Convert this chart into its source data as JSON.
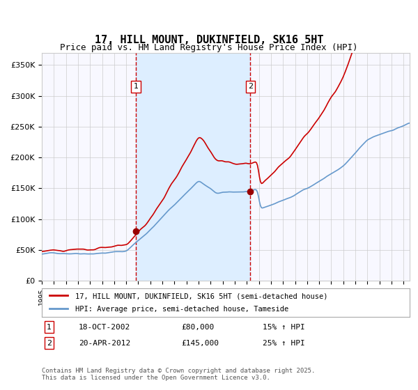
{
  "title": "17, HILL MOUNT, DUKINFIELD, SK16 5HT",
  "subtitle": "Price paid vs. HM Land Registry's House Price Index (HPI)",
  "legend_line1": "17, HILL MOUNT, DUKINFIELD, SK16 5HT (semi-detached house)",
  "legend_line2": "HPI: Average price, semi-detached house, Tameside",
  "footnote": "Contains HM Land Registry data © Crown copyright and database right 2025.\nThis data is licensed under the Open Government Licence v3.0.",
  "transaction1_date": "18-OCT-2002",
  "transaction1_price": 80000,
  "transaction1_hpi": "15% ↑ HPI",
  "transaction2_date": "20-APR-2012",
  "transaction2_price": 145000,
  "transaction2_hpi": "25% ↑ HPI",
  "red_line_color": "#cc0000",
  "blue_line_color": "#6699cc",
  "shade_color": "#ddeeff",
  "vline_color": "#cc0000",
  "grid_color": "#cccccc",
  "background_color": "#ffffff",
  "plot_bg_color": "#f8f8ff",
  "marker_color": "#990000",
  "ylim": [
    0,
    370000
  ],
  "yticks": [
    0,
    50000,
    100000,
    150000,
    200000,
    250000,
    300000,
    350000
  ],
  "ytick_labels": [
    "£0",
    "£50K",
    "£100K",
    "£150K",
    "£200K",
    "£250K",
    "£300K",
    "£350K"
  ],
  "xstart_year": 1995,
  "xend_year": 2025,
  "transaction1_year": 2002.8,
  "transaction2_year": 2012.3
}
